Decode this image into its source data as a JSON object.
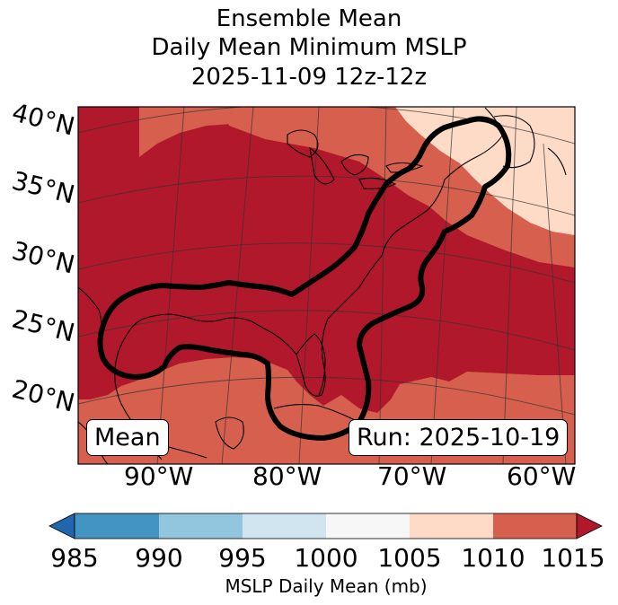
{
  "title": {
    "line1": "Ensemble Mean",
    "line2": "Daily Mean Minimum MSLP",
    "line3": "2025-11-09 12z-12z"
  },
  "map": {
    "lat_labels": [
      "40°N",
      "35°N",
      "30°N",
      "25°N",
      "20°N"
    ],
    "lon_labels": [
      "90°W",
      "80°W",
      "70°W",
      "60°W"
    ],
    "mean_box": "Mean",
    "run_box": "Run: 2025-10-19"
  },
  "colorbar": {
    "ticks": [
      "985",
      "990",
      "995",
      "1000",
      "1005",
      "1010",
      "1015"
    ],
    "label": "MSLP Daily Mean (mb)",
    "colors": [
      "#2166ac",
      "#4393c3",
      "#92c5de",
      "#d1e5f0",
      "#f7f7f7",
      "#fddbc7",
      "#d6604d",
      "#b2182b"
    ]
  },
  "field_colors": {
    "low": "#b2182b",
    "mid": "#d6604d",
    "high": "#fddbc7"
  }
}
